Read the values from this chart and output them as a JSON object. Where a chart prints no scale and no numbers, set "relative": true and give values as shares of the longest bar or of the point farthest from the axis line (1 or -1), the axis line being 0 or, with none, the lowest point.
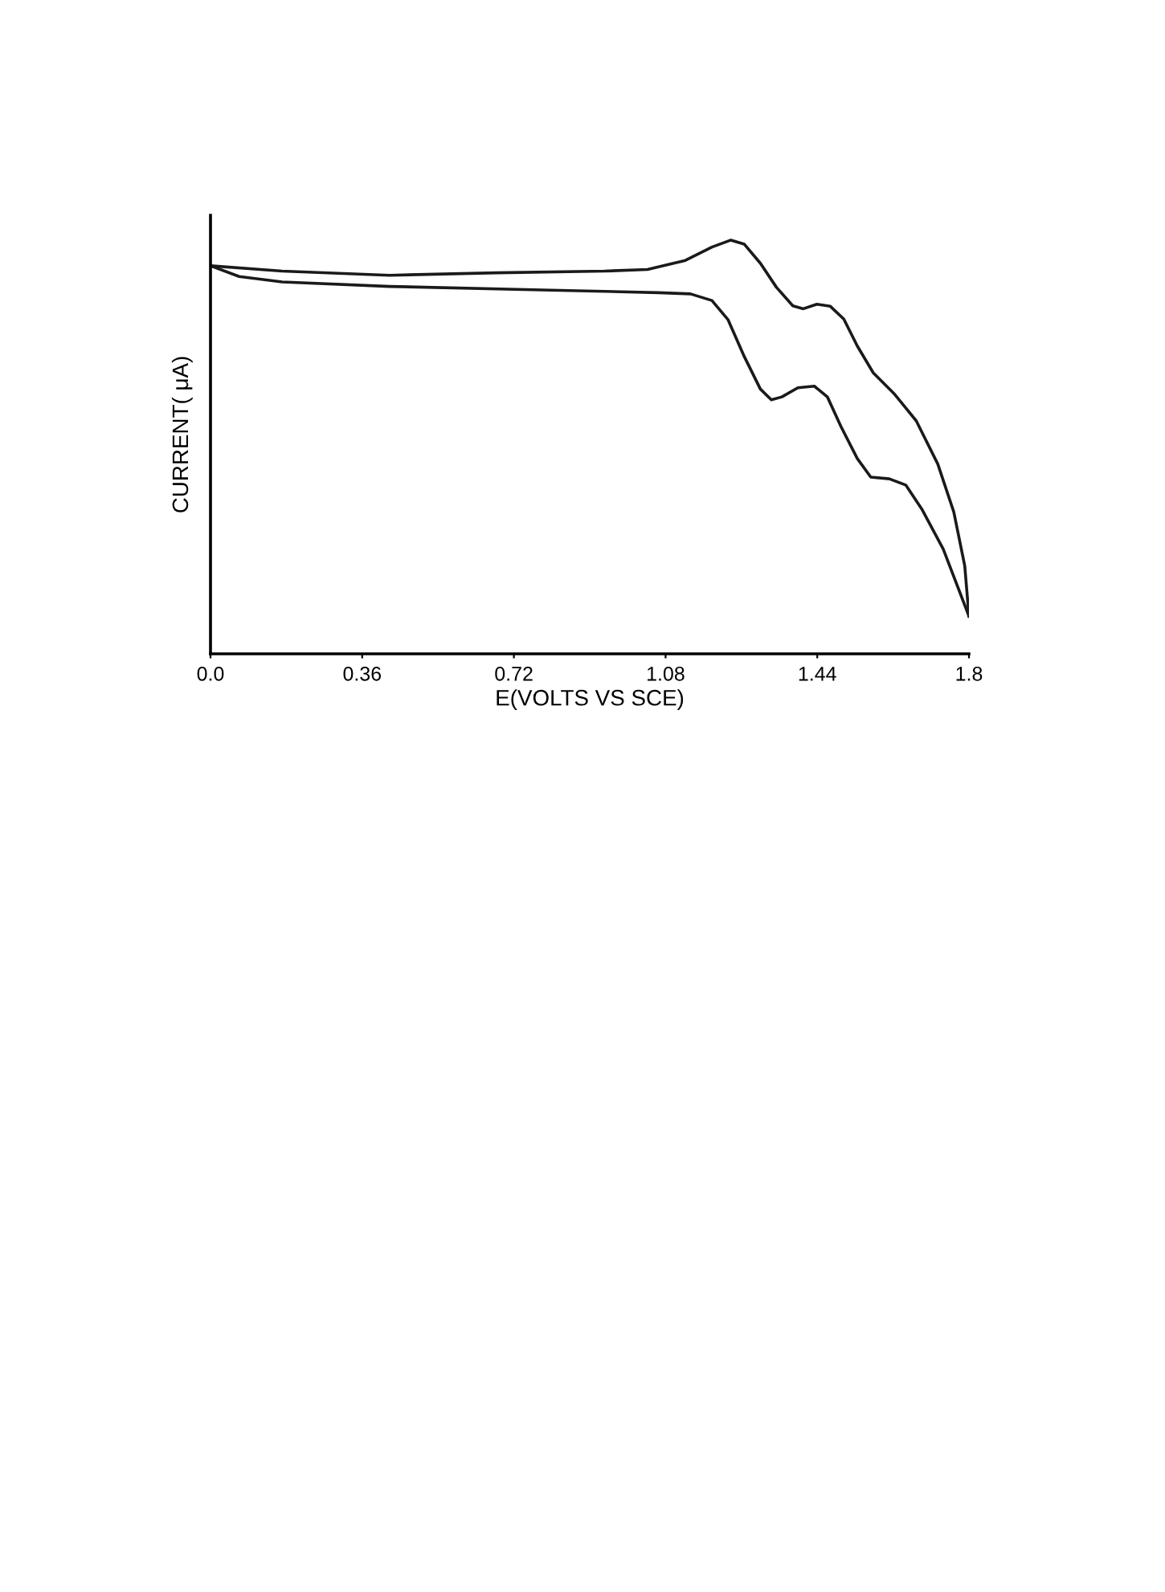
{
  "chart_data": {
    "type": "line",
    "relative": true,
    "xlabel": "E(VOLTS VS SCE)",
    "ylabel": "CURRENT( μA)",
    "xlim": [
      0,
      1.8
    ],
    "xticks": [
      {
        "value": 0,
        "label": "0.0"
      },
      0.36,
      0.72,
      1.08,
      1.44,
      1.8
    ],
    "tick_labels": "x",
    "grid": false,
    "marker": "none",
    "line_style": "solid",
    "series": [
      {
        "color": "#1a1a1a",
        "x": [
          0,
          0.17,
          0.425,
          0.68,
          0.935,
          1.037,
          1.127,
          1.19,
          1.235,
          1.267,
          1.305,
          1.343,
          1.382,
          1.407,
          1.439,
          1.471,
          1.503,
          1.535,
          1.573,
          1.624,
          1.675,
          1.726,
          1.764,
          1.79,
          1.8
        ],
        "values": [
          0.938,
          0.925,
          0.915,
          0.921,
          0.925,
          0.929,
          0.951,
          0.983,
          1.0,
          0.99,
          0.944,
          0.886,
          0.841,
          0.834,
          0.845,
          0.84,
          0.809,
          0.744,
          0.679,
          0.627,
          0.563,
          0.459,
          0.343,
          0.213,
          0.091
        ]
      },
      {
        "color": "#1a1a1a",
        "x": [
          0,
          0.068,
          0.17,
          0.425,
          0.808,
          1.063,
          1.139,
          1.19,
          1.228,
          1.267,
          1.305,
          1.331,
          1.356,
          1.394,
          1.433,
          1.464,
          1.496,
          1.535,
          1.567,
          1.611,
          1.65,
          1.688,
          1.739,
          1.8
        ],
        "values": [
          0.938,
          0.912,
          0.899,
          0.888,
          0.879,
          0.873,
          0.87,
          0.854,
          0.808,
          0.718,
          0.64,
          0.614,
          0.621,
          0.643,
          0.647,
          0.621,
          0.55,
          0.472,
          0.427,
          0.423,
          0.408,
          0.35,
          0.253,
          0.091
        ]
      }
    ]
  }
}
